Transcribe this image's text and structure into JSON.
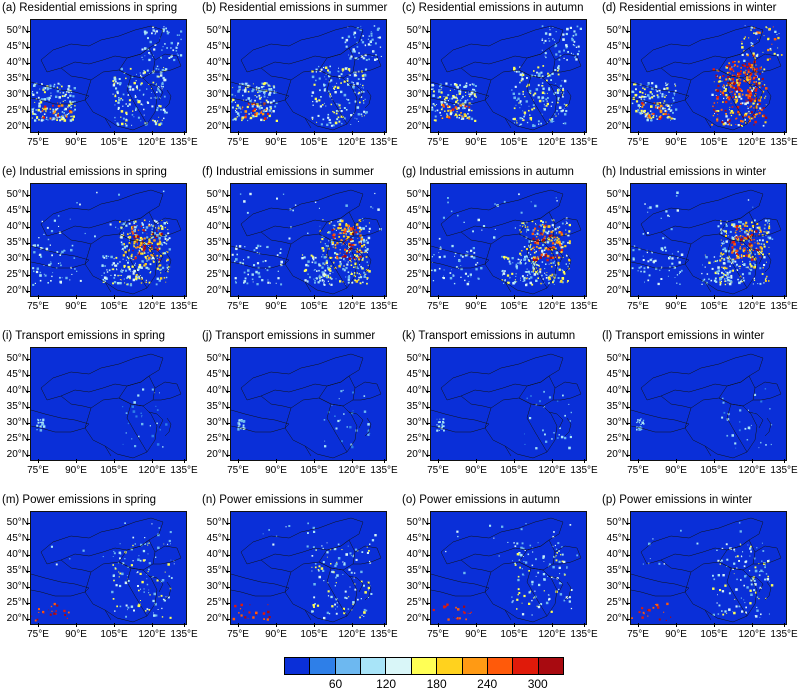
{
  "panels": [
    {
      "title": "(a) Residential emissions in spring",
      "category": "residential",
      "season": "spring"
    },
    {
      "title": "(b) Residential emissions in summer",
      "category": "residential",
      "season": "summer"
    },
    {
      "title": "(c) Residential emissions in autumn",
      "category": "residential",
      "season": "autumn"
    },
    {
      "title": "(d) Residential emissions in winter",
      "category": "residential",
      "season": "winter"
    },
    {
      "title": "(e) Industrial emissions in spring",
      "category": "industrial",
      "season": "spring"
    },
    {
      "title": "(f) Industrial emissions in summer",
      "category": "industrial",
      "season": "summer"
    },
    {
      "title": "(g) Industrial emissions in autumn",
      "category": "industrial",
      "season": "autumn"
    },
    {
      "title": "(h) Industrial emissions in winter",
      "category": "industrial",
      "season": "winter"
    },
    {
      "title": "(i) Transport emissions in spring",
      "category": "transport",
      "season": "spring"
    },
    {
      "title": "(j) Transport emissions in summer",
      "category": "transport",
      "season": "summer"
    },
    {
      "title": "(k) Transport emissions in autumn",
      "category": "transport",
      "season": "autumn"
    },
    {
      "title": "(l) Transport emissions in winter",
      "category": "transport",
      "season": "winter"
    },
    {
      "title": "(m) Power emissions in spring",
      "category": "power",
      "season": "spring"
    },
    {
      "title": "(n) Power emissions in summer",
      "category": "power",
      "season": "summer"
    },
    {
      "title": "(o) Power emissions in autumn",
      "category": "power",
      "season": "autumn"
    },
    {
      "title": "(p) Power emissions in winter",
      "category": "power",
      "season": "winter"
    }
  ],
  "lat_labels": [
    "50°N",
    "45°N",
    "40°N",
    "35°N",
    "30°N",
    "25°N",
    "20°N"
  ],
  "lon_labels": [
    "75°E",
    "90°E",
    "105°E",
    "120°E",
    "135°E"
  ],
  "colorbar": {
    "labels": [
      "60",
      "120",
      "180",
      "240",
      "300"
    ],
    "colors": [
      "#0a2fd8",
      "#2e7fe8",
      "#6db8f0",
      "#a8e4f8",
      "#d9f6f8",
      "#ffff55",
      "#ffd21e",
      "#ff9a14",
      "#ff5a0a",
      "#e01a0a",
      "#a80a10"
    ]
  },
  "background_color": "#0a2fd8"
}
